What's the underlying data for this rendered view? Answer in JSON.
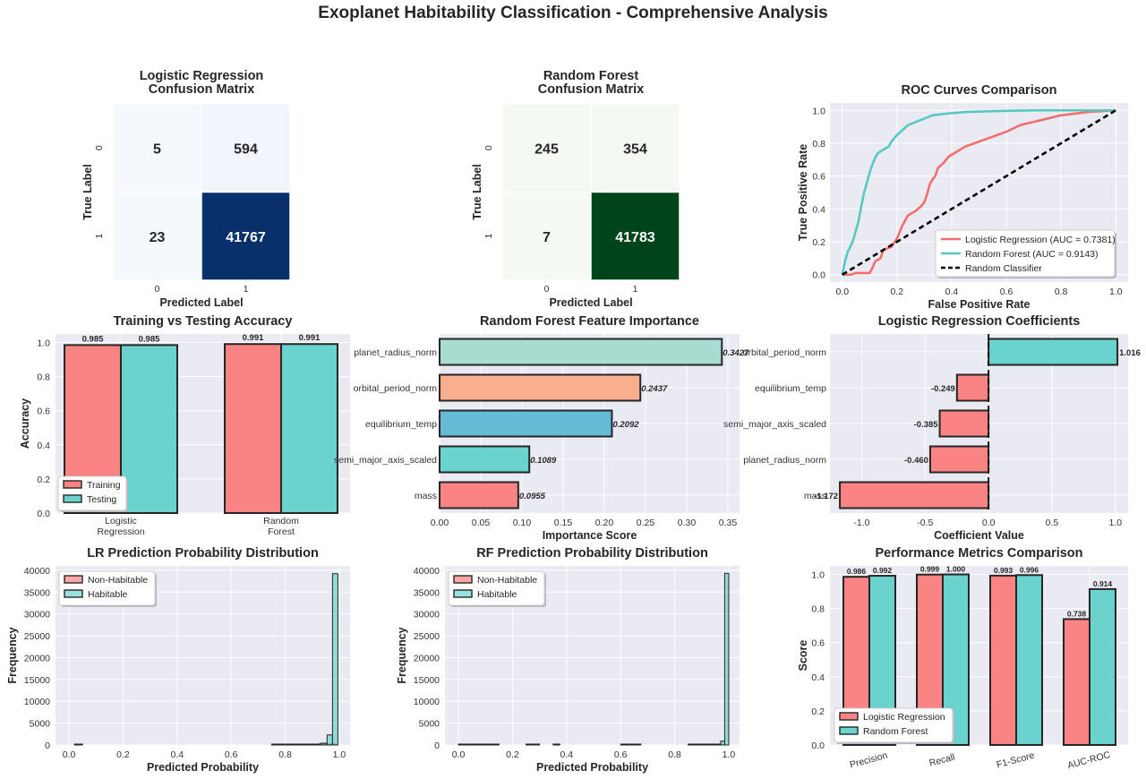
{
  "suptitle": "Exoplanet Habitability Classification - Comprehensive Analysis",
  "colors": {
    "red": "#F98483",
    "teal": "#6BD3CD",
    "roc_red": "#F26F6E",
    "roc_teal": "#56C9C2",
    "blues_dark": "#08306B",
    "blues_light": "#F5F8FD",
    "greens_dark": "#00441B",
    "greens_light": "#F5FBF3",
    "fi_colors": [
      "#F98483",
      "#6BD3CD",
      "#63BBD6",
      "#F9AE8E",
      "#A8DCD1"
    ],
    "panel_bg": "#EAEAF2"
  },
  "chart_data": [
    {
      "type": "heatmap",
      "title": "Logistic Regression\nConfusion Matrix",
      "xlabel": "Predicted Label",
      "ylabel": "True Label",
      "x_ticks": [
        "0",
        "1"
      ],
      "y_ticks": [
        "0",
        "1"
      ],
      "matrix": [
        [
          5,
          594
        ],
        [
          23,
          41767
        ]
      ],
      "colormap": "Blues"
    },
    {
      "type": "heatmap",
      "title": "Random Forest\nConfusion Matrix",
      "xlabel": "Predicted Label",
      "ylabel": "True Label",
      "x_ticks": [
        "0",
        "1"
      ],
      "y_ticks": [
        "0",
        "1"
      ],
      "matrix": [
        [
          245,
          354
        ],
        [
          7,
          41783
        ]
      ],
      "colormap": "Greens"
    },
    {
      "type": "line",
      "title": "ROC Curves Comparison",
      "xlabel": "False Positive Rate",
      "ylabel": "True Positive Rate",
      "xlim": [
        0,
        1
      ],
      "ylim": [
        0,
        1
      ],
      "ticks": [
        "0.0",
        "0.2",
        "0.4",
        "0.6",
        "0.8",
        "1.0"
      ],
      "legend_position": "lower-right",
      "series": [
        {
          "name": "Logistic Regression (AUC = 0.7381)",
          "color": "#F26F6E",
          "dash": "solid",
          "points": [
            [
              0,
              0
            ],
            [
              0.03,
              0
            ],
            [
              0.05,
              0.01
            ],
            [
              0.1,
              0.01
            ],
            [
              0.11,
              0.04
            ],
            [
              0.12,
              0.08
            ],
            [
              0.14,
              0.1
            ],
            [
              0.15,
              0.15
            ],
            [
              0.18,
              0.17
            ],
            [
              0.2,
              0.22
            ],
            [
              0.22,
              0.3
            ],
            [
              0.24,
              0.36
            ],
            [
              0.27,
              0.39
            ],
            [
              0.29,
              0.42
            ],
            [
              0.3,
              0.44
            ],
            [
              0.31,
              0.49
            ],
            [
              0.32,
              0.55
            ],
            [
              0.33,
              0.58
            ],
            [
              0.34,
              0.6
            ],
            [
              0.35,
              0.65
            ],
            [
              0.37,
              0.68
            ],
            [
              0.39,
              0.72
            ],
            [
              0.42,
              0.75
            ],
            [
              0.45,
              0.78
            ],
            [
              0.5,
              0.81
            ],
            [
              0.55,
              0.84
            ],
            [
              0.6,
              0.87
            ],
            [
              0.65,
              0.91
            ],
            [
              0.7,
              0.93
            ],
            [
              0.75,
              0.95
            ],
            [
              0.8,
              0.97
            ],
            [
              0.85,
              0.98
            ],
            [
              0.9,
              0.99
            ],
            [
              0.95,
              0.995
            ],
            [
              1,
              1
            ]
          ]
        },
        {
          "name": "Random Forest (AUC = 0.9143)",
          "color": "#56C9C2",
          "dash": "solid",
          "points": [
            [
              0,
              0
            ],
            [
              0.01,
              0.08
            ],
            [
              0.02,
              0.14
            ],
            [
              0.03,
              0.17
            ],
            [
              0.04,
              0.21
            ],
            [
              0.05,
              0.27
            ],
            [
              0.06,
              0.33
            ],
            [
              0.07,
              0.42
            ],
            [
              0.08,
              0.5
            ],
            [
              0.09,
              0.56
            ],
            [
              0.1,
              0.62
            ],
            [
              0.11,
              0.67
            ],
            [
              0.12,
              0.71
            ],
            [
              0.13,
              0.74
            ],
            [
              0.15,
              0.76
            ],
            [
              0.17,
              0.78
            ],
            [
              0.18,
              0.81
            ],
            [
              0.2,
              0.85
            ],
            [
              0.22,
              0.88
            ],
            [
              0.24,
              0.91
            ],
            [
              0.27,
              0.93
            ],
            [
              0.3,
              0.95
            ],
            [
              0.33,
              0.97
            ],
            [
              0.38,
              0.98
            ],
            [
              0.45,
              0.99
            ],
            [
              0.55,
              0.995
            ],
            [
              0.7,
              1
            ],
            [
              1,
              1
            ]
          ]
        },
        {
          "name": "Random Classifier",
          "color": "#000000",
          "dash": "dashed",
          "points": [
            [
              0,
              0
            ],
            [
              1,
              1
            ]
          ]
        }
      ]
    },
    {
      "type": "bar",
      "title": "Training vs Testing Accuracy",
      "xlabel": "",
      "ylabel": "Accuracy",
      "categories": [
        "Logistic\nRegression",
        "Random\nForest"
      ],
      "ylim": [
        0,
        1.05
      ],
      "ticks": [
        "0.0",
        "0.2",
        "0.4",
        "0.6",
        "0.8",
        "1.0"
      ],
      "legend_position": "lower-left",
      "series": [
        {
          "name": "Training",
          "values": [
            0.985,
            0.991
          ],
          "labels": [
            "0.985",
            "0.991"
          ]
        },
        {
          "name": "Testing",
          "values": [
            0.985,
            0.991
          ],
          "labels": [
            "0.985",
            "0.991"
          ]
        }
      ]
    },
    {
      "type": "bar",
      "orientation": "horizontal",
      "title": "Random Forest Feature Importance",
      "xlabel": "Importance Score",
      "ylabel": "",
      "categories": [
        "mass",
        "semi_major_axis_scaled",
        "equilibrium_temp",
        "orbital_period_norm",
        "planet_radius_norm"
      ],
      "values": [
        0.0955,
        0.1089,
        0.2092,
        0.2437,
        0.3427
      ],
      "labels": [
        "0.0955",
        "0.1089",
        "0.2092",
        "0.2437",
        "0.3427"
      ],
      "xlim": [
        0,
        0.35
      ],
      "ticks": [
        "0.00",
        "0.05",
        "0.10",
        "0.15",
        "0.20",
        "0.25",
        "0.30",
        "0.35"
      ]
    },
    {
      "type": "bar",
      "orientation": "horizontal",
      "title": "Logistic Regression Coefficients",
      "xlabel": "Coefficient Value",
      "ylabel": "",
      "categories": [
        "mass",
        "planet_radius_norm",
        "semi_major_axis_scaled",
        "equilibrium_temp",
        "orbital_period_norm"
      ],
      "values": [
        -1.172,
        -0.46,
        -0.385,
        -0.249,
        1.016
      ],
      "labels": [
        "-1.172",
        "-0.460",
        "-0.385",
        "-0.249",
        "1.016"
      ],
      "xlim": [
        -1.25,
        1.1
      ],
      "ticks": [
        "-1.0",
        "-0.5",
        "0.0",
        "0.5",
        "1.0"
      ]
    },
    {
      "type": "histogram",
      "title": "LR Prediction Probability Distribution",
      "xlabel": "Predicted Probability",
      "ylabel": "Frequency",
      "xlim": [
        -0.05,
        1.04
      ],
      "ylim": [
        0,
        41000
      ],
      "xticks": [
        "0.0",
        "0.2",
        "0.4",
        "0.6",
        "0.8",
        "1.0"
      ],
      "yticks": [
        "0",
        "5000",
        "10000",
        "15000",
        "20000",
        "25000",
        "30000",
        "35000",
        "40000"
      ],
      "legend_position": "upper-left",
      "series": [
        {
          "name": "Non-Habitable",
          "bins": [
            [
              0.02,
              0.05,
              5
            ],
            [
              0.75,
              0.78,
              30
            ],
            [
              0.78,
              0.81,
              60
            ],
            [
              0.81,
              0.84,
              90
            ],
            [
              0.84,
              0.87,
              110
            ],
            [
              0.87,
              0.9,
              120
            ],
            [
              0.9,
              0.93,
              100
            ],
            [
              0.93,
              0.96,
              60
            ],
            [
              0.96,
              0.99,
              20
            ]
          ]
        },
        {
          "name": "Habitable",
          "bins": [
            [
              0.81,
              0.84,
              30
            ],
            [
              0.84,
              0.87,
              60
            ],
            [
              0.87,
              0.9,
              100
            ],
            [
              0.9,
              0.93,
              180
            ],
            [
              0.93,
              0.955,
              400
            ],
            [
              0.955,
              0.975,
              2300
            ],
            [
              0.975,
              0.995,
              39200
            ]
          ]
        }
      ]
    },
    {
      "type": "histogram",
      "title": "RF Prediction Probability Distribution",
      "xlabel": "Predicted Probability",
      "ylabel": "Frequency",
      "xlim": [
        -0.05,
        1.04
      ],
      "ylim": [
        0,
        41000
      ],
      "xticks": [
        "0.0",
        "0.2",
        "0.4",
        "0.6",
        "0.8",
        "1.0"
      ],
      "yticks": [
        "0",
        "5000",
        "10000",
        "15000",
        "20000",
        "25000",
        "30000",
        "35000",
        "40000"
      ],
      "legend_position": "upper-left",
      "series": [
        {
          "name": "Non-Habitable",
          "bins": [
            [
              0.0,
              0.025,
              25
            ],
            [
              0.025,
              0.05,
              15
            ],
            [
              0.05,
              0.075,
              20
            ],
            [
              0.075,
              0.1,
              15
            ],
            [
              0.1,
              0.125,
              20
            ],
            [
              0.125,
              0.15,
              10
            ],
            [
              0.25,
              0.275,
              12
            ],
            [
              0.275,
              0.3,
              15
            ],
            [
              0.35,
              0.375,
              12
            ],
            [
              0.6,
              0.625,
              10
            ],
            [
              0.625,
              0.65,
              12
            ],
            [
              0.65,
              0.675,
              10
            ],
            [
              0.85,
              0.875,
              12
            ],
            [
              0.875,
              0.9,
              15
            ],
            [
              0.9,
              0.925,
              20
            ],
            [
              0.925,
              0.95,
              30
            ],
            [
              0.95,
              0.975,
              60
            ]
          ]
        },
        {
          "name": "Habitable",
          "bins": [
            [
              0.9,
              0.925,
              20
            ],
            [
              0.925,
              0.95,
              80
            ],
            [
              0.95,
              0.97,
              200
            ],
            [
              0.97,
              0.985,
              900
            ],
            [
              0.985,
              1.0,
              39300
            ]
          ]
        }
      ]
    },
    {
      "type": "bar",
      "title": "Performance Metrics Comparison",
      "xlabel": "",
      "ylabel": "Score",
      "categories": [
        "Precision",
        "Recall",
        "F1-Score",
        "AUC-ROC"
      ],
      "ylim": [
        0,
        1.05
      ],
      "ticks": [
        "0.0",
        "0.2",
        "0.4",
        "0.6",
        "0.8",
        "1.0"
      ],
      "legend_position": "lower-left",
      "series": [
        {
          "name": "Logistic Regression",
          "values": [
            0.986,
            0.999,
            0.993,
            0.738
          ],
          "labels": [
            "0.986",
            "0.999",
            "0.993",
            "0.738"
          ]
        },
        {
          "name": "Random Forest",
          "values": [
            0.992,
            1.0,
            0.996,
            0.914
          ],
          "labels": [
            "0.992",
            "1.000",
            "0.996",
            "0.914"
          ]
        }
      ]
    }
  ]
}
